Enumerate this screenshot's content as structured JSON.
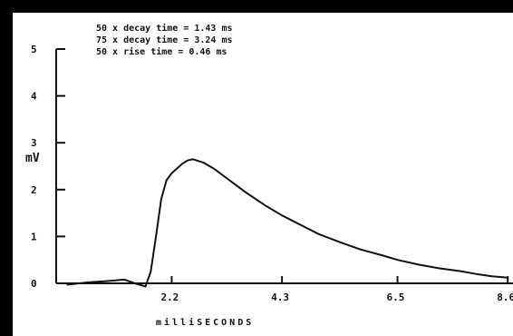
{
  "chart_data": {
    "type": "line",
    "annotations": [
      "50 x decay time = 1.43 ms",
      "75 x decay time = 3.24 ms",
      "50 x rise time = 0.46 ms"
    ],
    "ylabel": "mV",
    "xlabel": "milliSECONDS",
    "xlim": [
      0.0,
      8.7
    ],
    "ylim": [
      0,
      5
    ],
    "x_tick_labels": [
      "2.2",
      "4.3",
      "6.5",
      "8.6"
    ],
    "x_ticks": [
      2.2,
      4.3,
      6.5,
      8.6
    ],
    "y_tick_labels": [
      "0",
      "1",
      "2",
      "3",
      "4",
      "5"
    ],
    "y_ticks": [
      0,
      1,
      2,
      3,
      4,
      5
    ],
    "grid": false,
    "series": [
      {
        "color": "#111111",
        "x": [
          0.2,
          0.6,
          1.0,
          1.3,
          1.5,
          1.7,
          1.8,
          1.9,
          2.0,
          2.1,
          2.2,
          2.3,
          2.4,
          2.5,
          2.6,
          2.8,
          3.0,
          3.3,
          3.6,
          4.0,
          4.3,
          4.7,
          5.0,
          5.4,
          5.8,
          6.2,
          6.5,
          6.9,
          7.3,
          7.7,
          8.0,
          8.3,
          8.6
        ],
        "values": [
          -0.03,
          0.02,
          0.05,
          0.08,
          0.0,
          -0.07,
          0.25,
          1.0,
          1.8,
          2.2,
          2.35,
          2.45,
          2.55,
          2.62,
          2.65,
          2.58,
          2.45,
          2.2,
          1.95,
          1.65,
          1.45,
          1.22,
          1.05,
          0.88,
          0.72,
          0.6,
          0.5,
          0.4,
          0.32,
          0.26,
          0.2,
          0.15,
          0.12
        ]
      }
    ]
  }
}
